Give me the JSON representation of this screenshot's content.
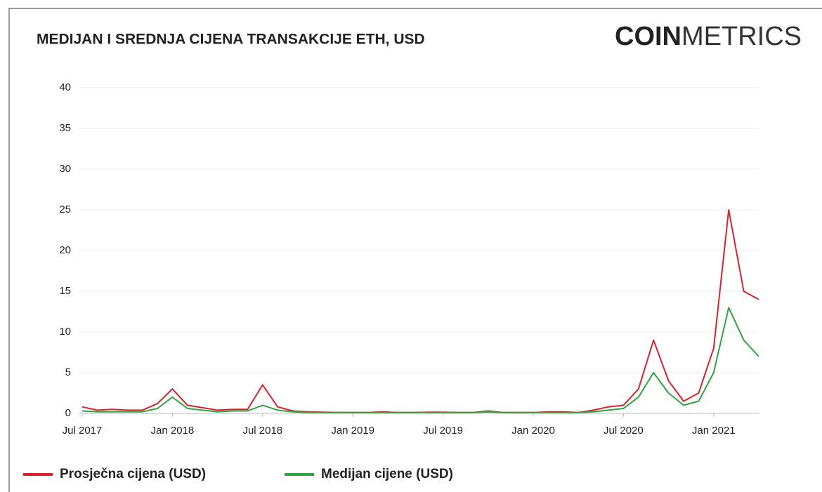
{
  "chart_data": {
    "type": "line",
    "title": "MEDIJAN I SREDNJA CIJENA TRANSAKCIJE ETH, USD",
    "logo": {
      "bold": "COIN",
      "light": "METRICS"
    },
    "x": [
      "2017-07",
      "2017-08",
      "2017-09",
      "2017-10",
      "2017-11",
      "2017-12",
      "2018-01",
      "2018-02",
      "2018-03",
      "2018-04",
      "2018-05",
      "2018-06",
      "2018-07",
      "2018-08",
      "2018-09",
      "2018-10",
      "2018-11",
      "2018-12",
      "2019-01",
      "2019-02",
      "2019-03",
      "2019-04",
      "2019-05",
      "2019-06",
      "2019-07",
      "2019-08",
      "2019-09",
      "2019-10",
      "2019-11",
      "2019-12",
      "2020-01",
      "2020-02",
      "2020-03",
      "2020-04",
      "2020-05",
      "2020-06",
      "2020-07",
      "2020-08",
      "2020-09",
      "2020-10",
      "2020-11",
      "2020-12",
      "2021-01",
      "2021-02",
      "2021-03",
      "2021-04"
    ],
    "series": [
      {
        "name": "Prosječna cijena (USD)",
        "color": "#d9232e",
        "values": [
          0.8,
          0.4,
          0.5,
          0.4,
          0.4,
          1.2,
          3.0,
          1.0,
          0.7,
          0.4,
          0.5,
          0.5,
          3.5,
          0.8,
          0.3,
          0.2,
          0.15,
          0.1,
          0.1,
          0.1,
          0.2,
          0.1,
          0.1,
          0.15,
          0.15,
          0.1,
          0.1,
          0.3,
          0.1,
          0.1,
          0.1,
          0.2,
          0.2,
          0.1,
          0.4,
          0.8,
          1.0,
          3.0,
          9.0,
          4.0,
          1.5,
          2.5,
          8.0,
          25,
          15,
          14
        ]
      },
      {
        "name": "Medijan cijene (USD)",
        "color": "#33a244",
        "values": [
          0.3,
          0.2,
          0.2,
          0.2,
          0.2,
          0.6,
          2.0,
          0.6,
          0.4,
          0.2,
          0.3,
          0.3,
          1.0,
          0.4,
          0.2,
          0.1,
          0.1,
          0.1,
          0.1,
          0.1,
          0.1,
          0.1,
          0.1,
          0.1,
          0.1,
          0.1,
          0.1,
          0.2,
          0.1,
          0.1,
          0.1,
          0.1,
          0.1,
          0.1,
          0.2,
          0.4,
          0.6,
          2.0,
          5.0,
          2.5,
          1.0,
          1.5,
          5.0,
          13.0,
          9.0,
          7.0
        ]
      }
    ],
    "xlim": [
      "2017-07",
      "2021-04"
    ],
    "xticks": [
      {
        "value": "2017-07",
        "label": "Jul 2017"
      },
      {
        "value": "2018-01",
        "label": "Jan 2018"
      },
      {
        "value": "2018-07",
        "label": "Jul 2018"
      },
      {
        "value": "2019-01",
        "label": "Jan 2019"
      },
      {
        "value": "2019-07",
        "label": "Jul 2019"
      },
      {
        "value": "2020-01",
        "label": "Jan 2020"
      },
      {
        "value": "2020-07",
        "label": "Jul 2020"
      },
      {
        "value": "2021-01",
        "label": "Jan 2021"
      }
    ],
    "ylim": [
      0,
      40
    ],
    "yticks": [
      0,
      5,
      10,
      15,
      20,
      25,
      30,
      35,
      40
    ],
    "grid": true
  }
}
